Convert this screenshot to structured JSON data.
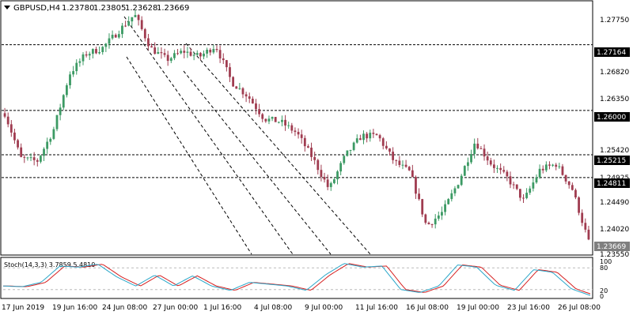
{
  "header": {
    "symbol": "GBPUSD,H4",
    "open": "1.23780",
    "high": "1.23805",
    "low": "1.23628",
    "close": "1.23669"
  },
  "price_axis": {
    "ticks": [
      "1.27750",
      "1.26820",
      "1.26350",
      "1.25420",
      "1.24925",
      "1.24490",
      "1.24020",
      "1.23550"
    ]
  },
  "levels": [
    {
      "value": 1.27164,
      "label": "1.27164"
    },
    {
      "value": 1.26,
      "label": "1.26000"
    },
    {
      "value": 1.25215,
      "label": "1.25215"
    },
    {
      "value": 1.24811,
      "label": "1.24811"
    }
  ],
  "current_price": {
    "value": 1.23669,
    "label": "1.23669"
  },
  "stochastic": {
    "title": "Stoch(14,3,3) 3.7859 5.4810",
    "levels": [
      "100",
      "80",
      "20",
      "0"
    ],
    "level_values": [
      100,
      80,
      20,
      0
    ]
  },
  "time_axis": {
    "labels": [
      "17 Jun 2019",
      "19 Jun 16:00",
      "24 Jun 08:00",
      "27 Jun 00:00",
      "1 Jul 16:00",
      "4 Jul 08:00",
      "9 Jul 00:00",
      "11 Jul 16:00",
      "16 Jul 08:00",
      "19 Jul 00:00",
      "23 Jul 16:00",
      "26 Jul 08:00"
    ]
  },
  "colors": {
    "bull": "#3c9a64",
    "bear": "#a03c50",
    "stoch_main": "#2aa7c9",
    "stoch_signal": "#d61f1f",
    "grid": "#000000",
    "label_bg": "#000000",
    "label_text": "#ffffff"
  },
  "chart_data": {
    "type": "candlestick",
    "symbol": "GBPUSD",
    "timeframe": "H4",
    "ylim": [
      1.2348,
      1.279
    ],
    "close_path": [
      [
        "17 Jun 2019",
        1.2595
      ],
      [
        "18 Jun",
        1.2515
      ],
      [
        "18 Jun 12:00",
        1.251
      ],
      [
        "19 Jun 00:00",
        1.2565
      ],
      [
        "19 Jun 16:00",
        1.2665
      ],
      [
        "20 Jun",
        1.27
      ],
      [
        "21 Jun",
        1.271
      ],
      [
        "21 Jun 12:00",
        1.274
      ],
      [
        "24 Jun 08:00",
        1.277
      ],
      [
        "25 Jun",
        1.271
      ],
      [
        "26 Jun",
        1.269
      ],
      [
        "27 Jun 00:00",
        1.2705
      ],
      [
        "28 Jun",
        1.2695
      ],
      [
        "1 Jul 00:00",
        1.2715
      ],
      [
        "1 Jul 16:00",
        1.265
      ],
      [
        "2 Jul",
        1.2625
      ],
      [
        "3 Jul",
        1.2585
      ],
      [
        "4 Jul 08:00",
        1.258
      ],
      [
        "5 Jul",
        1.256
      ],
      [
        "8 Jul",
        1.2515
      ],
      [
        "9 Jul 00:00",
        1.246
      ],
      [
        "10 Jul",
        1.252
      ],
      [
        "10 Jul 16:00",
        1.2555
      ],
      [
        "11 Jul 16:00",
        1.2555
      ],
      [
        "12 Jul",
        1.251
      ],
      [
        "15 Jul",
        1.249
      ],
      [
        "16 Jul 08:00",
        1.2395
      ],
      [
        "17 Jul",
        1.242
      ],
      [
        "18 Jul",
        1.2475
      ],
      [
        "19 Jul 00:00",
        1.2545
      ],
      [
        "19 Jul 12:00",
        1.2505
      ],
      [
        "22 Jul",
        1.248
      ],
      [
        "23 Jul 00:00",
        1.244
      ],
      [
        "23 Jul 16:00",
        1.2495
      ],
      [
        "24 Jul",
        1.2505
      ],
      [
        "25 Jul",
        1.246
      ],
      [
        "26 Jul 08:00",
        1.2367
      ]
    ],
    "stoch_path": [
      [
        "17 Jun 2019",
        30
      ],
      [
        "18 Jun 12:00",
        28
      ],
      [
        "19 Jun 00:00",
        40
      ],
      [
        "19 Jun 16:00",
        85
      ],
      [
        "21 Jun",
        82
      ],
      [
        "24 Jun 08:00",
        90
      ],
      [
        "25 Jun",
        55
      ],
      [
        "26 Jun",
        30
      ],
      [
        "27 Jun 00:00",
        60
      ],
      [
        "28 Jun",
        30
      ],
      [
        "1 Jul 00:00",
        58
      ],
      [
        "1 Jul 16:00",
        30
      ],
      [
        "2 Jul",
        18
      ],
      [
        "3 Jul",
        40
      ],
      [
        "4 Jul 08:00",
        35
      ],
      [
        "8 Jul",
        30
      ],
      [
        "9 Jul 00:00",
        18
      ],
      [
        "10 Jul",
        60
      ],
      [
        "10 Jul 16:00",
        92
      ],
      [
        "11 Jul 16:00",
        82
      ],
      [
        "12 Jul",
        85
      ],
      [
        "15 Jul",
        20
      ],
      [
        "16 Jul 08:00",
        12
      ],
      [
        "18 Jul",
        30
      ],
      [
        "19 Jul 00:00",
        88
      ],
      [
        "19 Jul 12:00",
        82
      ],
      [
        "22 Jul",
        32
      ],
      [
        "23 Jul 00:00",
        18
      ],
      [
        "23 Jul 16:00",
        75
      ],
      [
        "24 Jul",
        68
      ],
      [
        "25 Jul",
        22
      ],
      [
        "26 Jul 08:00",
        4
      ]
    ],
    "grid": false,
    "trend_channels": [
      "descending channel from 24 Jun high",
      "descending channel from 1 Jul high"
    ]
  }
}
